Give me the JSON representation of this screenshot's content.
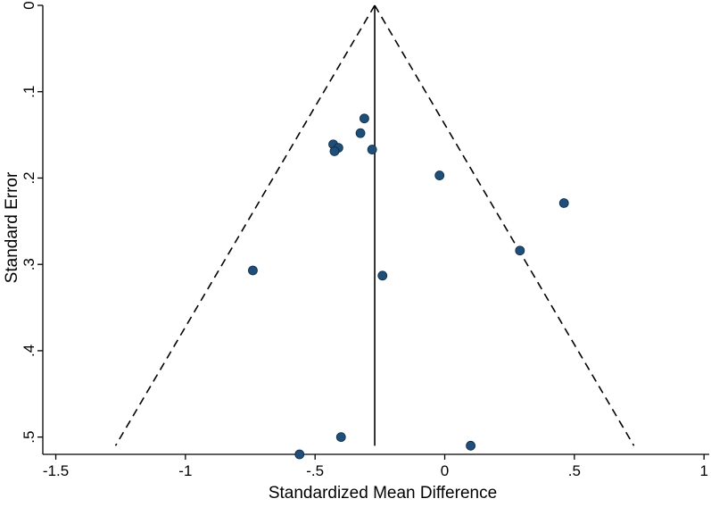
{
  "chart_data": {
    "type": "scatter",
    "title": "",
    "xlabel": "Standardized Mean Difference",
    "ylabel": "Standard Error",
    "xlim": [
      -1.55,
      1.02
    ],
    "ylim": [
      0,
      0.52
    ],
    "y_inverted": true,
    "grid": false,
    "x_ticks": [
      -1.5,
      -1,
      -0.5,
      0,
      0.5,
      1
    ],
    "x_tick_labels": [
      "-1.5",
      "-1",
      "-.5",
      "0",
      ".5",
      "1"
    ],
    "y_ticks": [
      0,
      0.1,
      0.2,
      0.3,
      0.4,
      0.5
    ],
    "y_tick_labels": [
      "0",
      ".1",
      ".2",
      ".3",
      ".4",
      ".5"
    ],
    "pooled_effect": -0.27,
    "funnel_se_max": 0.51,
    "points": [
      {
        "x": -0.31,
        "y": 0.131
      },
      {
        "x": -0.325,
        "y": 0.148
      },
      {
        "x": -0.43,
        "y": 0.161
      },
      {
        "x": -0.41,
        "y": 0.165
      },
      {
        "x": -0.425,
        "y": 0.169
      },
      {
        "x": -0.28,
        "y": 0.167
      },
      {
        "x": -0.02,
        "y": 0.197
      },
      {
        "x": 0.46,
        "y": 0.229
      },
      {
        "x": 0.29,
        "y": 0.284
      },
      {
        "x": -0.74,
        "y": 0.307
      },
      {
        "x": -0.24,
        "y": 0.313
      },
      {
        "x": -0.4,
        "y": 0.5
      },
      {
        "x": 0.1,
        "y": 0.51
      },
      {
        "x": -0.56,
        "y": 0.52
      }
    ],
    "colors": {
      "point": "#1f4e79",
      "axis": "#000000",
      "funnel": "#000000",
      "pooled_line": "#000000"
    }
  }
}
